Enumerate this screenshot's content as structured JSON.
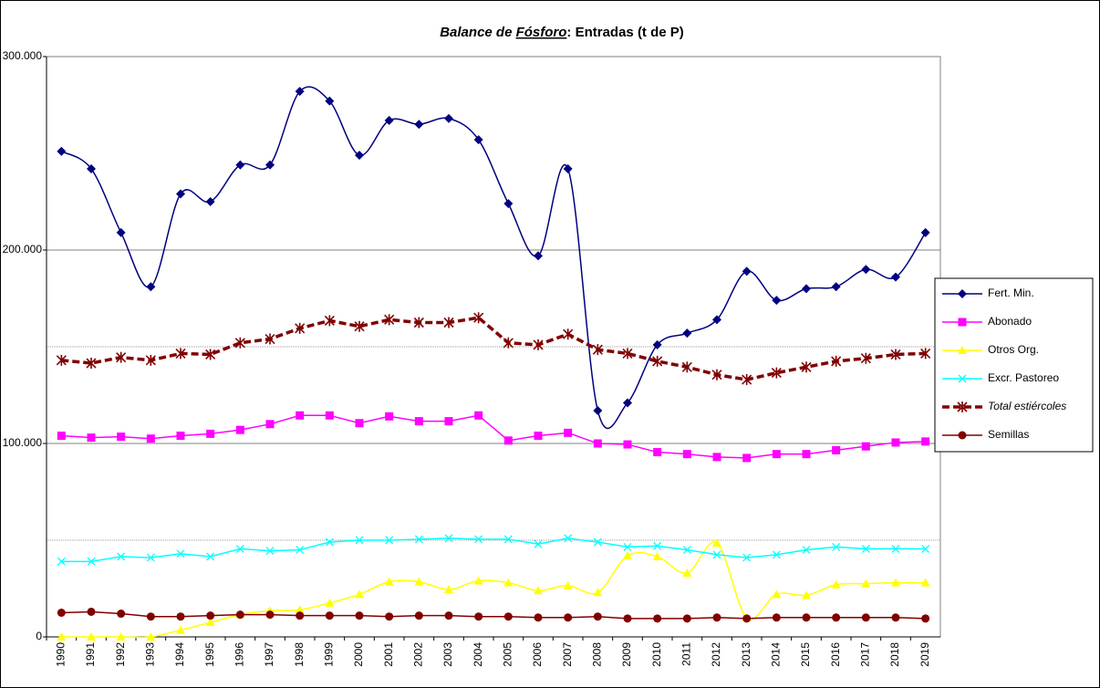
{
  "chart_data": {
    "type": "line",
    "title": [
      "Balance de ",
      "Fósforo",
      ": Entradas (t de P)"
    ],
    "categories": [
      "1990",
      "1991",
      "1992",
      "1993",
      "1994",
      "1995",
      "1996",
      "1997",
      "1998",
      "1999",
      "2000",
      "2001",
      "2002",
      "2003",
      "2004",
      "2005",
      "2006",
      "2007",
      "2008",
      "2009",
      "2010",
      "2011",
      "2012",
      "2013",
      "2014",
      "2015",
      "2016",
      "2017",
      "2018",
      "2019"
    ],
    "ylim": [
      0,
      300000
    ],
    "yticks": [
      0,
      {
        "value": 100000,
        "label": "100.000"
      },
      {
        "value": 200000,
        "label": "200.000"
      },
      {
        "value": 300000,
        "label": "300.000"
      }
    ],
    "yminor": [
      50000,
      150000
    ],
    "grid": true,
    "legend": "right",
    "series": [
      {
        "name": "Fert. Min.",
        "color": "#000080",
        "marker": "diamond",
        "smooth": true,
        "values": [
          251000,
          242000,
          209000,
          181000,
          229000,
          225000,
          244000,
          244000,
          282000,
          277000,
          249000,
          267000,
          265000,
          268000,
          257000,
          224000,
          197000,
          242000,
          117000,
          121000,
          151000,
          157000,
          164000,
          189000,
          174000,
          180000,
          181000,
          190000,
          186000,
          209000
        ]
      },
      {
        "name": "Abonado",
        "color": "#ff00ff",
        "marker": "square",
        "smooth": false,
        "values": [
          104000,
          103000,
          103500,
          102500,
          104000,
          105000,
          107000,
          110000,
          114500,
          114500,
          110500,
          114000,
          111500,
          111500,
          114500,
          101500,
          104000,
          105500,
          100000,
          99500,
          95500,
          94500,
          93000,
          92500,
          94500,
          94500,
          96500,
          98500,
          100500,
          101000
        ]
      },
      {
        "name": "Otros Org.",
        "color": "#ffff00",
        "marker": "triangle",
        "smooth": true,
        "values": [
          0,
          0,
          0,
          0,
          3500,
          7500,
          11500,
          13500,
          14000,
          17500,
          22000,
          28500,
          28500,
          24500,
          29000,
          28000,
          24000,
          26500,
          23000,
          42000,
          41500,
          33000,
          48500,
          10000,
          22000,
          21500,
          27000,
          27500,
          28000,
          28000
        ]
      },
      {
        "name": "Excr. Pastoreo",
        "color": "#00ffff",
        "marker": "x",
        "smooth": false,
        "values": [
          39000,
          39000,
          41500,
          41000,
          43000,
          41500,
          45500,
          44500,
          45000,
          49000,
          50000,
          50000,
          50500,
          51000,
          50500,
          50500,
          48000,
          51000,
          49000,
          46500,
          47000,
          45000,
          42500,
          41000,
          42500,
          45000,
          46500,
          45500,
          45500,
          45500
        ]
      },
      {
        "name": "Total estiércoles",
        "color": "#800000",
        "marker": "star",
        "smooth": false,
        "dashed": true,
        "italic": true,
        "values": [
          143000,
          141500,
          144500,
          143000,
          146500,
          146000,
          152000,
          154000,
          159500,
          163500,
          160500,
          164000,
          162500,
          162500,
          165000,
          152000,
          151000,
          156500,
          148500,
          146500,
          142500,
          139500,
          135500,
          133000,
          136500,
          139500,
          142500,
          144000,
          146000,
          146500
        ]
      },
      {
        "name": "Semillas",
        "color": "#800000",
        "marker": "circle",
        "smooth": false,
        "values": [
          12500,
          13000,
          12000,
          10500,
          10500,
          11000,
          11500,
          11500,
          11000,
          11000,
          11000,
          10500,
          11000,
          11000,
          10500,
          10500,
          10000,
          10000,
          10500,
          9500,
          9500,
          9500,
          10000,
          9500,
          10000,
          10000,
          10000,
          10000,
          10000,
          9500
        ]
      }
    ]
  }
}
